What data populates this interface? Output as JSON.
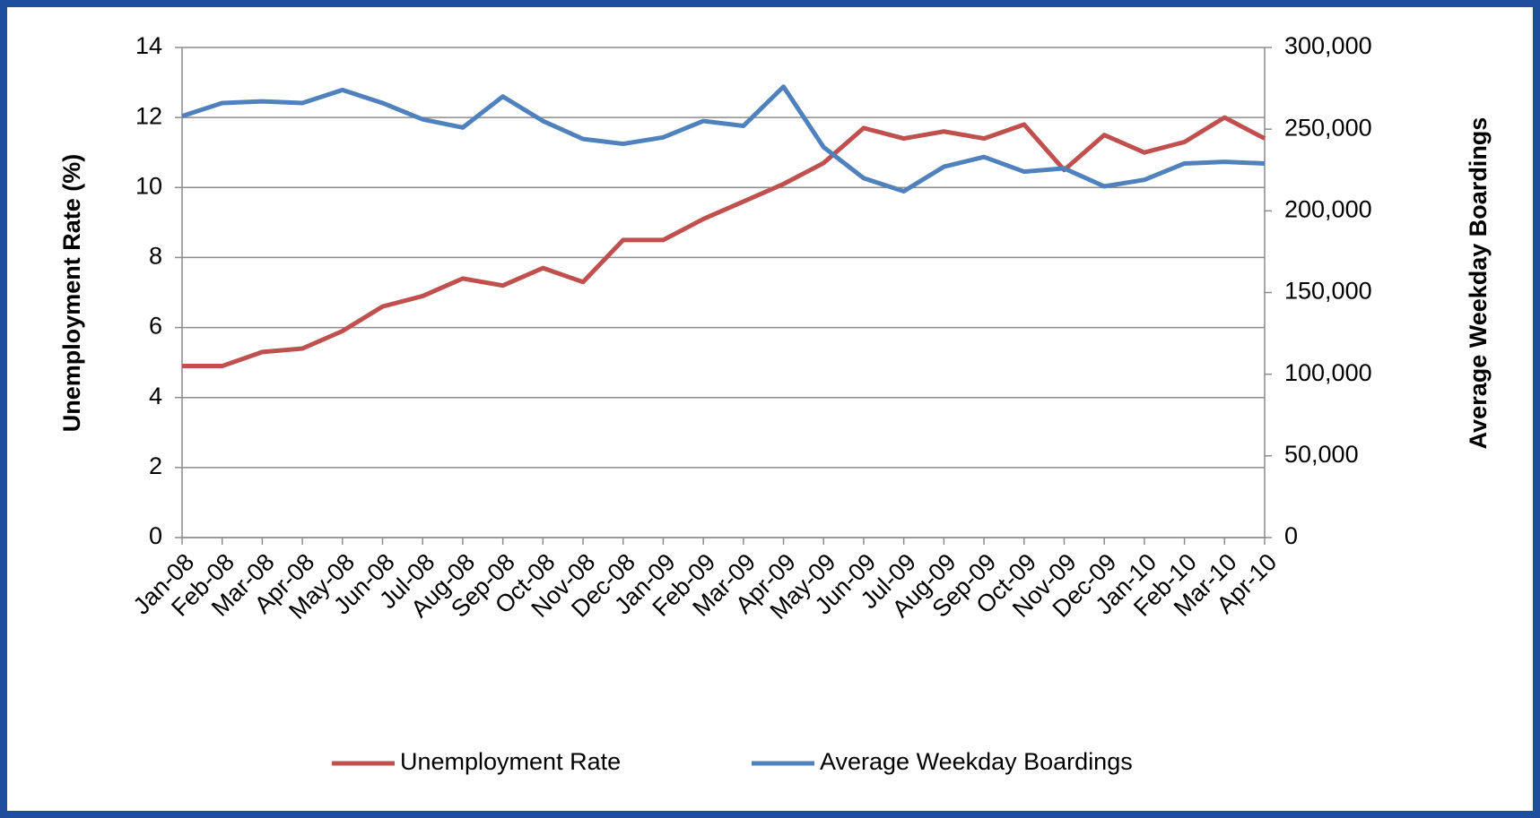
{
  "chart_data": {
    "type": "line",
    "y_label": "Unemployment Rate (%)",
    "y2_label": "Average Weekday Boardings",
    "categories": [
      "Jan-08",
      "Feb-08",
      "Mar-08",
      "Apr-08",
      "May-08",
      "Jun-08",
      "Jul-08",
      "Aug-08",
      "Sep-08",
      "Oct-08",
      "Nov-08",
      "Dec-08",
      "Jan-09",
      "Feb-09",
      "Mar-09",
      "Apr-09",
      "May-09",
      "Jun-09",
      "Jul-09",
      "Aug-09",
      "Sep-09",
      "Oct-09",
      "Nov-09",
      "Dec-09",
      "Jan-10",
      "Feb-10",
      "Mar-10",
      "Apr-10"
    ],
    "series": [
      {
        "name": "Unemployment Rate",
        "color": "#c0504d",
        "axis": "y",
        "values": [
          4.9,
          4.9,
          5.3,
          5.4,
          5.9,
          6.6,
          6.9,
          7.4,
          7.2,
          7.7,
          7.3,
          8.5,
          8.5,
          9.1,
          9.6,
          10.1,
          10.7,
          11.7,
          11.4,
          11.6,
          11.4,
          11.8,
          10.5,
          11.5,
          11.0,
          11.3,
          12.0,
          11.4
        ]
      },
      {
        "name": "Average Weekday Boardings",
        "color": "#4f81bd",
        "axis": "y2",
        "values": [
          258000,
          266000,
          267000,
          266000,
          274000,
          266000,
          256000,
          251000,
          270000,
          255000,
          244000,
          241000,
          245000,
          255000,
          252000,
          276000,
          239000,
          220000,
          212000,
          227000,
          233000,
          224000,
          226000,
          215000,
          219000,
          229000,
          230000,
          229000
        ]
      }
    ],
    "ylim": [
      0,
      14
    ],
    "yticks": [
      0,
      2,
      4,
      6,
      8,
      10,
      12,
      14
    ],
    "y2lim": [
      0,
      300000
    ],
    "y2ticks": [
      0,
      {
        "value": 50000,
        "label": "50,000"
      },
      {
        "value": 100000,
        "label": "100,000"
      },
      {
        "value": 150000,
        "label": "150,000"
      },
      {
        "value": 200000,
        "label": "200,000"
      },
      {
        "value": 250000,
        "label": "250,000"
      },
      {
        "value": 300000,
        "label": "300,000"
      }
    ],
    "grid": true,
    "legend": "bottom"
  }
}
